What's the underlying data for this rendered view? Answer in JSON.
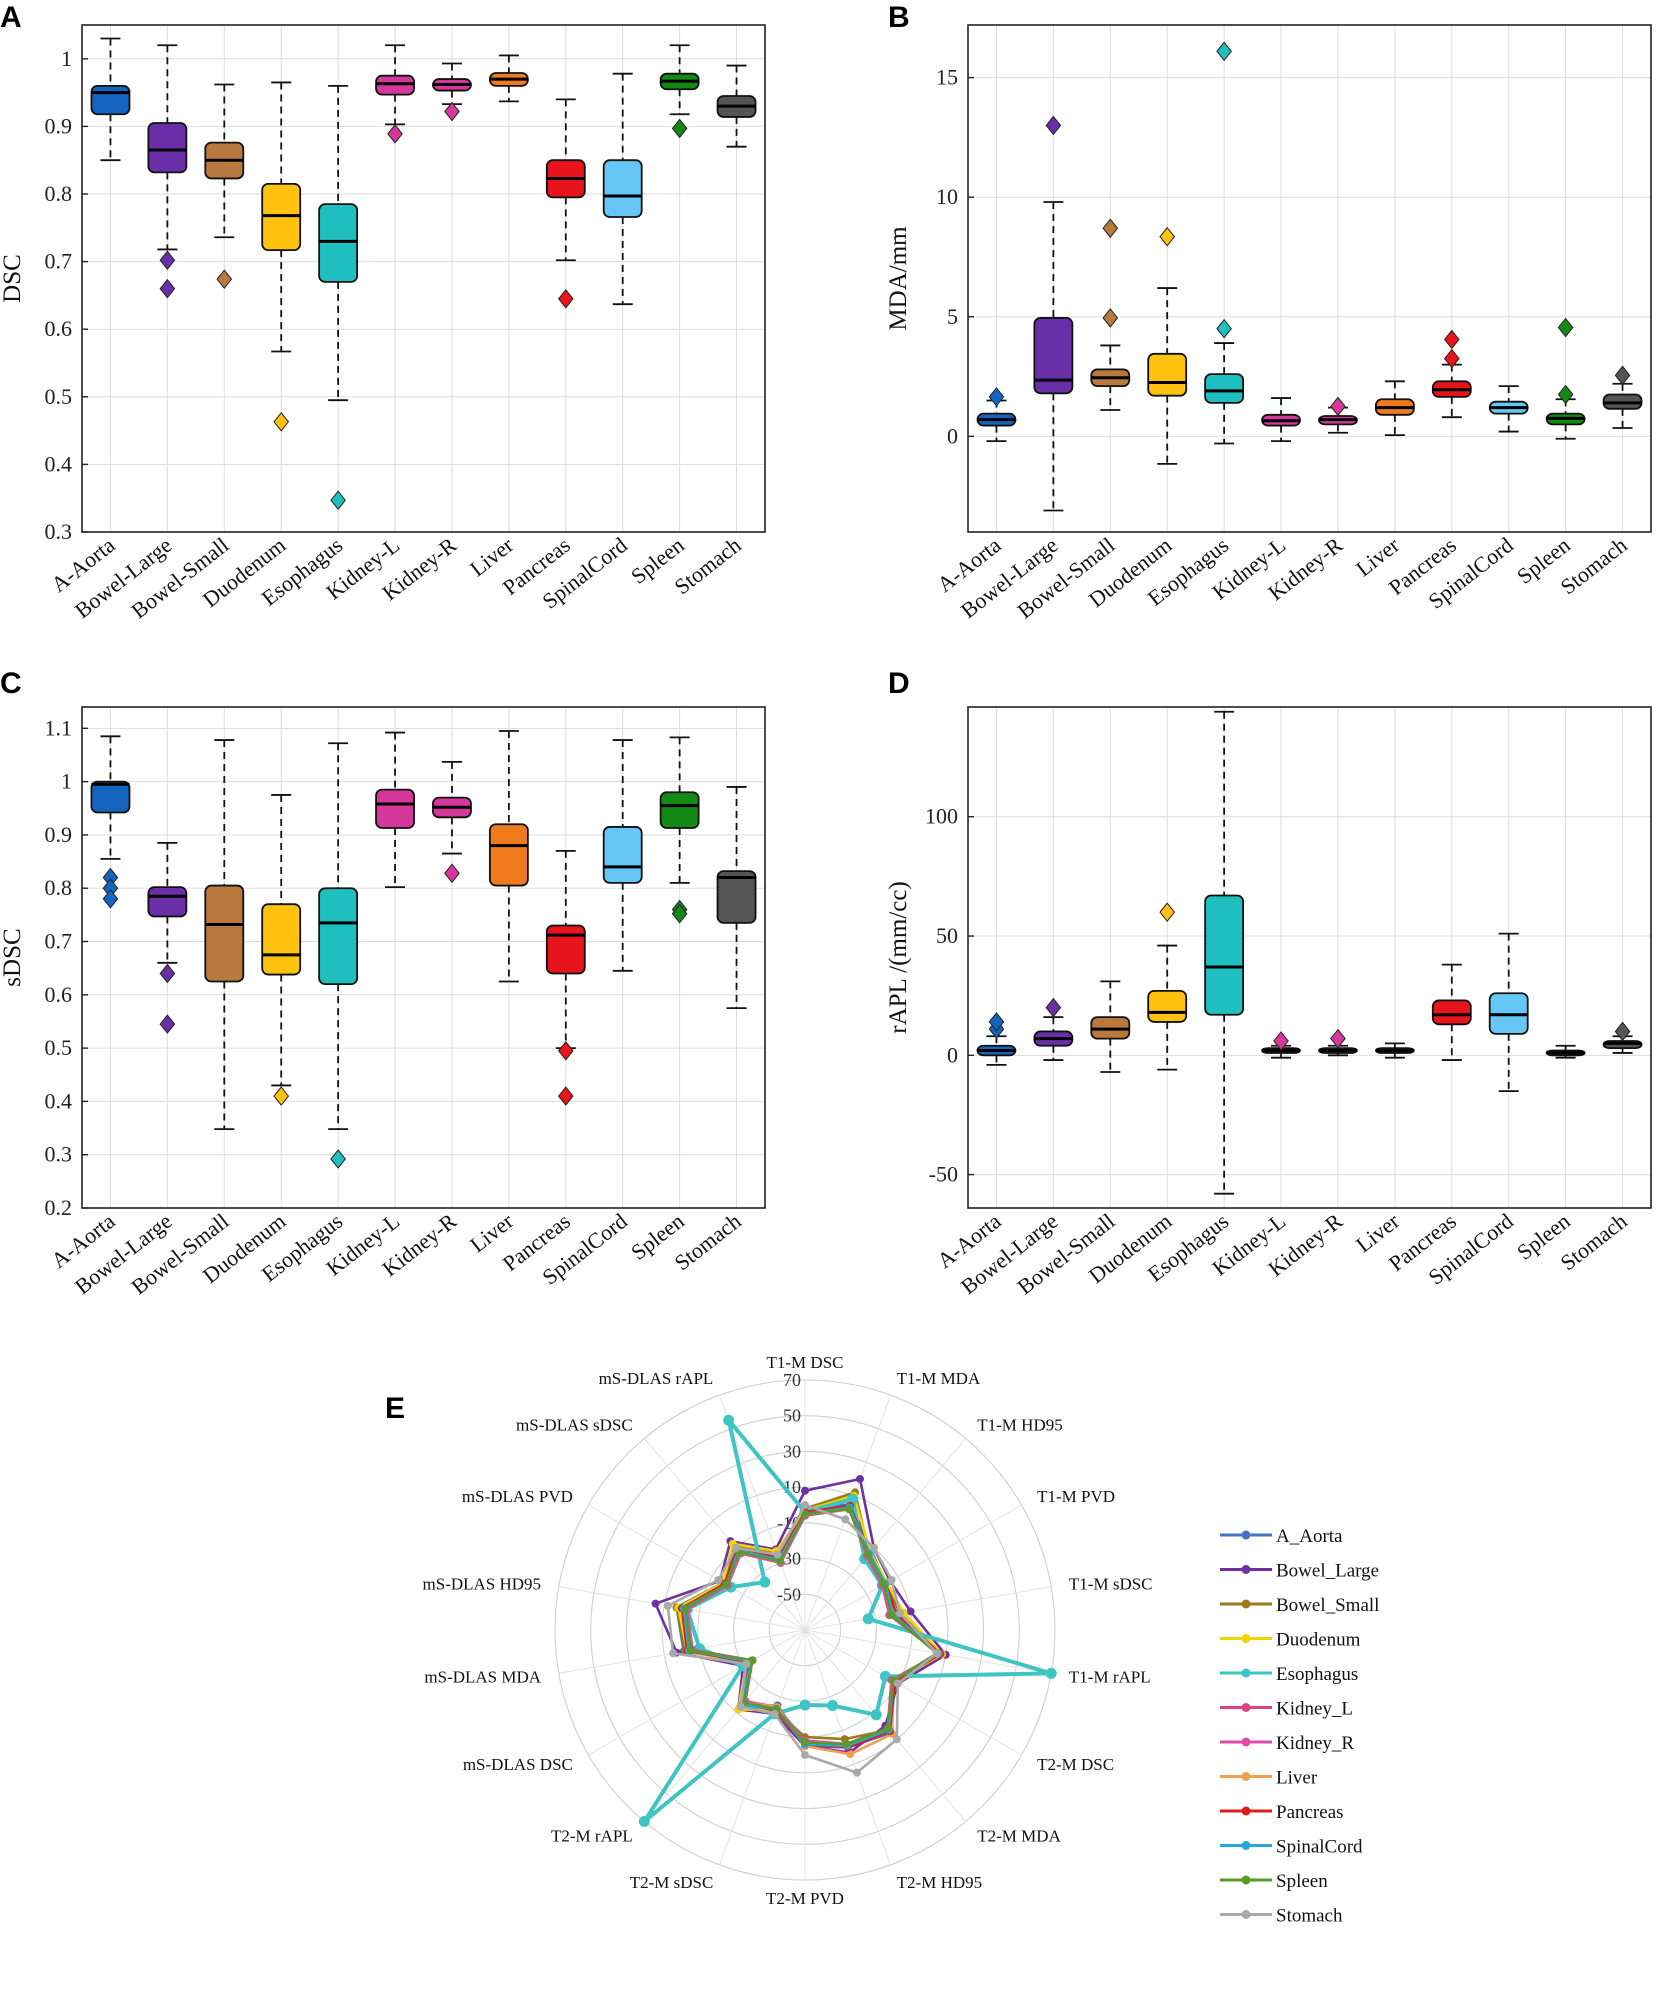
{
  "panels": {
    "a": "A",
    "b": "B",
    "c": "C",
    "d": "D",
    "e": "E"
  },
  "chart_data": [
    {
      "type": "box",
      "ylabel": "DSC",
      "ylim": [
        0.3,
        1.05
      ],
      "yticks": [
        0.3,
        0.4,
        0.5,
        0.6,
        0.7,
        0.8,
        0.9,
        1
      ],
      "yticklabels": [
        "0.3",
        "0.4",
        "0.5",
        "0.6",
        "0.7",
        "0.8",
        "0.9",
        "1"
      ],
      "categories": [
        "A-Aorta",
        "Bowel-Large",
        "Bowel-Small",
        "Duodenum",
        "Esophagus",
        "Kidney-L",
        "Kidney-R",
        "Liver",
        "Pancreas",
        "SpinalCord",
        "Spleen",
        "Stomach"
      ],
      "colors": [
        "#1565c0",
        "#6a2ea8",
        "#b8793f",
        "#ffc20e",
        "#1fbfbf",
        "#d6379a",
        "#d6379a",
        "#f07a1e",
        "#e8141c",
        "#66c6f5",
        "#138a16",
        "#555555"
      ],
      "boxes": [
        {
          "min": 0.85,
          "q1": 0.918,
          "median": 0.95,
          "q3": 0.96,
          "max": 1.03,
          "outliers": []
        },
        {
          "min": 0.718,
          "q1": 0.832,
          "median": 0.865,
          "q3": 0.905,
          "max": 1.02,
          "outliers": [
            0.702,
            0.66
          ]
        },
        {
          "min": 0.736,
          "q1": 0.823,
          "median": 0.85,
          "q3": 0.876,
          "max": 0.962,
          "outliers": [
            0.674
          ]
        },
        {
          "min": 0.567,
          "q1": 0.717,
          "median": 0.768,
          "q3": 0.815,
          "max": 0.965,
          "outliers": [
            0.463
          ]
        },
        {
          "min": 0.495,
          "q1": 0.67,
          "median": 0.73,
          "q3": 0.785,
          "max": 0.96,
          "outliers": [
            0.347
          ]
        },
        {
          "min": 0.903,
          "q1": 0.947,
          "median": 0.963,
          "q3": 0.975,
          "max": 1.02,
          "outliers": [
            0.889
          ]
        },
        {
          "min": 0.933,
          "q1": 0.953,
          "median": 0.962,
          "q3": 0.97,
          "max": 0.993,
          "outliers": [
            0.922
          ]
        },
        {
          "min": 0.937,
          "q1": 0.96,
          "median": 0.97,
          "q3": 0.979,
          "max": 1.005,
          "outliers": []
        },
        {
          "min": 0.702,
          "q1": 0.795,
          "median": 0.823,
          "q3": 0.85,
          "max": 0.94,
          "outliers": [
            0.645
          ]
        },
        {
          "min": 0.637,
          "q1": 0.766,
          "median": 0.797,
          "q3": 0.85,
          "max": 0.978,
          "outliers": []
        },
        {
          "min": 0.918,
          "q1": 0.955,
          "median": 0.967,
          "q3": 0.978,
          "max": 1.02,
          "outliers": [
            0.897
          ]
        },
        {
          "min": 0.87,
          "q1": 0.914,
          "median": 0.93,
          "q3": 0.945,
          "max": 0.99,
          "outliers": []
        }
      ]
    },
    {
      "type": "box",
      "ylabel": "MDA/mm",
      "ylim": [
        -4,
        17.2
      ],
      "yticks": [
        0,
        5,
        10,
        15
      ],
      "yticklabels": [
        "0",
        "5",
        "10",
        "15"
      ],
      "categories": [
        "A-Aorta",
        "Bowel-Large",
        "Bowel-Small",
        "Duodenum",
        "Esophagus",
        "Kidney-L",
        "Kidney-R",
        "Liver",
        "Pancreas",
        "SpinalCord",
        "Spleen",
        "Stomach"
      ],
      "colors": [
        "#1565c0",
        "#6a2ea8",
        "#b8793f",
        "#ffc20e",
        "#1fbfbf",
        "#d6379a",
        "#d6379a",
        "#f07a1e",
        "#e8141c",
        "#66c6f5",
        "#138a16",
        "#555555"
      ],
      "boxes": [
        {
          "min": -0.2,
          "q1": 0.45,
          "median": 0.7,
          "q3": 0.95,
          "max": 1.5,
          "outliers": [
            1.65
          ]
        },
        {
          "min": -3.1,
          "q1": 1.8,
          "median": 2.35,
          "q3": 4.95,
          "max": 9.8,
          "outliers": [
            13.0
          ]
        },
        {
          "min": 1.1,
          "q1": 2.1,
          "median": 2.45,
          "q3": 2.8,
          "max": 3.8,
          "outliers": [
            4.95,
            8.7
          ]
        },
        {
          "min": -1.15,
          "q1": 1.7,
          "median": 2.25,
          "q3": 3.45,
          "max": 6.2,
          "outliers": [
            8.35
          ]
        },
        {
          "min": -0.3,
          "q1": 1.4,
          "median": 1.9,
          "q3": 2.6,
          "max": 3.9,
          "outliers": [
            4.5,
            16.1
          ]
        },
        {
          "min": -0.2,
          "q1": 0.45,
          "median": 0.65,
          "q3": 0.9,
          "max": 1.6,
          "outliers": []
        },
        {
          "min": 0.15,
          "q1": 0.5,
          "median": 0.7,
          "q3": 0.85,
          "max": 1.2,
          "outliers": [
            1.25
          ]
        },
        {
          "min": 0.05,
          "q1": 0.9,
          "median": 1.2,
          "q3": 1.55,
          "max": 2.3,
          "outliers": []
        },
        {
          "min": 0.8,
          "q1": 1.65,
          "median": 1.95,
          "q3": 2.3,
          "max": 3.0,
          "outliers": [
            3.25,
            4.05
          ]
        },
        {
          "min": 0.2,
          "q1": 0.95,
          "median": 1.2,
          "q3": 1.45,
          "max": 2.1,
          "outliers": []
        },
        {
          "min": -0.1,
          "q1": 0.5,
          "median": 0.75,
          "q3": 0.95,
          "max": 1.55,
          "outliers": [
            1.75,
            4.55
          ]
        },
        {
          "min": 0.35,
          "q1": 1.15,
          "median": 1.4,
          "q3": 1.75,
          "max": 2.2,
          "outliers": [
            2.55
          ]
        }
      ]
    },
    {
      "type": "box",
      "ylabel": "sDSC",
      "ylim": [
        0.2,
        1.14
      ],
      "yticks": [
        0.2,
        0.3,
        0.4,
        0.5,
        0.6,
        0.7,
        0.8,
        0.9,
        1,
        1.1
      ],
      "yticklabels": [
        "0.2",
        "0.3",
        "0.4",
        "0.5",
        "0.6",
        "0.7",
        "0.8",
        "0.9",
        "1",
        "1.1"
      ],
      "categories": [
        "A-Aorta",
        "Bowel-Large",
        "Bowel-Small",
        "Duodenum",
        "Esophagus",
        "Kidney-L",
        "Kidney-R",
        "Liver",
        "Pancreas",
        "SpinalCord",
        "Spleen",
        "Stomach"
      ],
      "colors": [
        "#1565c0",
        "#6a2ea8",
        "#b8793f",
        "#ffc20e",
        "#1fbfbf",
        "#d6379a",
        "#d6379a",
        "#f07a1e",
        "#e8141c",
        "#66c6f5",
        "#138a16",
        "#555555"
      ],
      "boxes": [
        {
          "min": 0.855,
          "q1": 0.942,
          "median": 0.995,
          "q3": 1.0,
          "max": 1.085,
          "outliers": [
            0.82,
            0.8,
            0.78
          ]
        },
        {
          "min": 0.66,
          "q1": 0.747,
          "median": 0.785,
          "q3": 0.802,
          "max": 0.885,
          "outliers": [
            0.64,
            0.545
          ]
        },
        {
          "min": 0.348,
          "q1": 0.625,
          "median": 0.732,
          "q3": 0.805,
          "max": 1.078,
          "outliers": []
        },
        {
          "min": 0.43,
          "q1": 0.638,
          "median": 0.675,
          "q3": 0.77,
          "max": 0.975,
          "outliers": [
            0.41
          ]
        },
        {
          "min": 0.348,
          "q1": 0.62,
          "median": 0.735,
          "q3": 0.8,
          "max": 1.072,
          "outliers": [
            0.292
          ]
        },
        {
          "min": 0.802,
          "q1": 0.913,
          "median": 0.958,
          "q3": 0.985,
          "max": 1.092,
          "outliers": []
        },
        {
          "min": 0.865,
          "q1": 0.933,
          "median": 0.952,
          "q3": 0.97,
          "max": 1.037,
          "outliers": [
            0.828
          ]
        },
        {
          "min": 0.625,
          "q1": 0.805,
          "median": 0.88,
          "q3": 0.92,
          "max": 1.095,
          "outliers": []
        },
        {
          "min": 0.5,
          "q1": 0.64,
          "median": 0.712,
          "q3": 0.73,
          "max": 0.87,
          "outliers": [
            0.495,
            0.41
          ]
        },
        {
          "min": 0.645,
          "q1": 0.81,
          "median": 0.84,
          "q3": 0.915,
          "max": 1.078,
          "outliers": []
        },
        {
          "min": 0.81,
          "q1": 0.913,
          "median": 0.955,
          "q3": 0.98,
          "max": 1.083,
          "outliers": [
            0.76,
            0.752
          ]
        },
        {
          "min": 0.575,
          "q1": 0.735,
          "median": 0.82,
          "q3": 0.832,
          "max": 0.99,
          "outliers": []
        }
      ]
    },
    {
      "type": "box",
      "ylabel": "rAPL /(mm/cc)",
      "ylim": [
        -64,
        146
      ],
      "yticks": [
        -50,
        0,
        50,
        100
      ],
      "yticklabels": [
        "-50",
        "0",
        "50",
        "100"
      ],
      "categories": [
        "A-Aorta",
        "Bowel-Large",
        "Bowel-Small",
        "Duodenum",
        "Esophagus",
        "Kidney-L",
        "Kidney-R",
        "Liver",
        "Pancreas",
        "SpinalCord",
        "Spleen",
        "Stomach"
      ],
      "colors": [
        "#1565c0",
        "#6a2ea8",
        "#b8793f",
        "#ffc20e",
        "#1fbfbf",
        "#d6379a",
        "#d6379a",
        "#f07a1e",
        "#e8141c",
        "#66c6f5",
        "#138a16",
        "#555555"
      ],
      "boxes": [
        {
          "min": -4,
          "q1": 0,
          "median": 2,
          "q3": 4,
          "max": 8,
          "outliers": [
            11,
            14
          ]
        },
        {
          "min": -2,
          "q1": 4,
          "median": 7,
          "q3": 10,
          "max": 16,
          "outliers": [
            20
          ]
        },
        {
          "min": -7,
          "q1": 7,
          "median": 11,
          "q3": 16,
          "max": 31,
          "outliers": []
        },
        {
          "min": -6,
          "q1": 14,
          "median": 18,
          "q3": 27,
          "max": 46,
          "outliers": [
            60
          ]
        },
        {
          "min": -58,
          "q1": 17,
          "median": 37,
          "q3": 67,
          "max": 144,
          "outliers": []
        },
        {
          "min": -1,
          "q1": 1,
          "median": 2,
          "q3": 3,
          "max": 4,
          "outliers": [
            6
          ]
        },
        {
          "min": 0,
          "q1": 1,
          "median": 2,
          "q3": 3,
          "max": 4,
          "outliers": [
            7
          ]
        },
        {
          "min": -1,
          "q1": 1,
          "median": 2,
          "q3": 3,
          "max": 5,
          "outliers": []
        },
        {
          "min": -2,
          "q1": 13,
          "median": 17,
          "q3": 23,
          "max": 38,
          "outliers": []
        },
        {
          "min": -15,
          "q1": 9,
          "median": 17,
          "q3": 26,
          "max": 51,
          "outliers": []
        },
        {
          "min": -1,
          "q1": 0,
          "median": 1,
          "q3": 2,
          "max": 4,
          "outliers": []
        },
        {
          "min": 1,
          "q1": 3,
          "median": 5,
          "q3": 6,
          "max": 8,
          "outliers": [
            10
          ]
        }
      ]
    },
    {
      "type": "radar",
      "rlim": [
        -70,
        70
      ],
      "rticks": [
        -50,
        -30,
        -10,
        10,
        30,
        50,
        70
      ],
      "rticklabels": [
        "-50",
        "-30",
        "-10",
        "10",
        "30",
        "50",
        "70"
      ],
      "axes": [
        "T1-M DSC",
        "T1-M MDA",
        "T1-M HD95",
        "T1-M PVD",
        "T1-M sDSC",
        "T1-M rAPL",
        "T2-M DSC",
        "T2-M MDA",
        "T2-M HD95",
        "T2-M PVD",
        "T2-M sDSC",
        "T2-M rAPL",
        "mS-DLAS DSC",
        "mS-DLAS MDA",
        "mS-DLAS HD95",
        "mS-DLAS PVD",
        "mS-DLAS sDSC",
        "mS-DLAS rAPL"
      ],
      "series": [
        {
          "name": "A_Aorta",
          "color": "#4472c4",
          "values": [
            -3,
            5,
            -12,
            -18,
            -22,
            8,
            -12,
            5,
            0,
            -5,
            -25,
            -14,
            -35,
            -1,
            3,
            -17,
            -10,
            -27
          ]
        },
        {
          "name": "Bowel_Large",
          "color": "#7030a0",
          "values": [
            8,
            20,
            -10,
            -15,
            -10,
            10,
            -10,
            0,
            3,
            -5,
            -20,
            -12,
            -30,
            3,
            15,
            -15,
            -5,
            -22
          ]
        },
        {
          "name": "Bowel_Small",
          "color": "#9a7b1a",
          "values": [
            -2,
            12,
            -14,
            -18,
            -16,
            7,
            -14,
            3,
            -5,
            -10,
            -22,
            -13,
            -33,
            -2,
            3,
            -18,
            -8,
            -24
          ]
        },
        {
          "name": "Duodenum",
          "color": "#f2d500",
          "values": [
            -3,
            10,
            -13,
            -17,
            -14,
            8,
            -12,
            4,
            -2,
            -6,
            -22,
            -12,
            -32,
            -3,
            2,
            -17,
            -7,
            -23
          ]
        },
        {
          "name": "Esophagus",
          "color": "#3fc4c4",
          "values": [
            -4,
            8,
            -18,
            -20,
            -34,
            70,
            -18,
            -8,
            -25,
            -28,
            -20,
            70,
            -30,
            -10,
            -3,
            -22,
            -35,
            55
          ]
        },
        {
          "name": "Kidney_L",
          "color": "#e0428a",
          "values": [
            -6,
            2,
            -16,
            -20,
            -22,
            6,
            -14,
            2,
            -2,
            -8,
            -24,
            -18,
            -36,
            -6,
            -3,
            -20,
            -14,
            -30
          ]
        },
        {
          "name": "Kidney_R",
          "color": "#e04aa8",
          "values": [
            -6,
            3,
            -16,
            -20,
            -22,
            6,
            -14,
            2,
            -2,
            -8,
            -24,
            -18,
            -36,
            -6,
            -3,
            -20,
            -14,
            -30
          ]
        },
        {
          "name": "Liver",
          "color": "#f0a050",
          "values": [
            -5,
            2,
            -15,
            -19,
            -20,
            5,
            -13,
            6,
            4,
            -5,
            -24,
            -17,
            -35,
            -4,
            -2,
            -19,
            -13,
            -29
          ]
        },
        {
          "name": "Pancreas",
          "color": "#e01c1c",
          "values": [
            -4,
            4,
            -14,
            -18,
            -18,
            7,
            -12,
            4,
            0,
            -6,
            -22,
            -16,
            -34,
            -3,
            0,
            -18,
            -11,
            -27
          ]
        },
        {
          "name": "SpinalCord",
          "color": "#25a8e0",
          "values": [
            -5,
            3,
            -14,
            -18,
            -20,
            6,
            -13,
            3,
            -1,
            -6,
            -23,
            -15,
            -35,
            -4,
            -1,
            -19,
            -12,
            -28
          ]
        },
        {
          "name": "Spleen",
          "color": "#5a9a2a",
          "values": [
            -5,
            2,
            -15,
            -19,
            -21,
            5,
            -13,
            2,
            -2,
            -7,
            -23,
            -17,
            -36,
            -5,
            -2,
            -19,
            -13,
            -29
          ]
        },
        {
          "name": "Stomach",
          "color": "#a9a9a9",
          "values": [
            0,
            -4,
            -10,
            -14,
            -16,
            5,
            -10,
            10,
            15,
            0,
            -20,
            -14,
            -32,
            5,
            8,
            -14,
            -10,
            -25
          ]
        }
      ]
    }
  ]
}
